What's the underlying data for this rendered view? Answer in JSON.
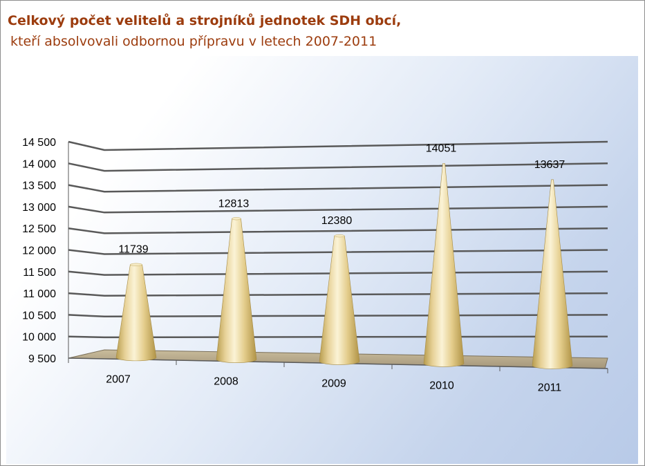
{
  "chart_data": {
    "type": "bar",
    "title": "Celkový počet velitelů a strojníků jednotek SDH obcí,",
    "subtitle": "kteří absolvovali odbornou přípravu v letech 2007-2011",
    "categories": [
      "2007",
      "2008",
      "2009",
      "2010",
      "2011"
    ],
    "values": [
      11739,
      12813,
      12380,
      14051,
      13637
    ],
    "data_labels": [
      "11739",
      "12813",
      "12380",
      "14051",
      "13637"
    ],
    "ylim": [
      9500,
      14500
    ],
    "yticks": [
      9500,
      10000,
      10500,
      11000,
      11500,
      12000,
      12500,
      13000,
      13500,
      14000,
      14500
    ],
    "ytick_labels": [
      "9 500",
      "10 000",
      "10 500",
      "11 000",
      "11 500",
      "12 000",
      "12 500",
      "13 000",
      "13 500",
      "14 000",
      "14 500"
    ],
    "grid": true,
    "legend": "none",
    "bar_shape": "cone",
    "colors": {
      "bar": "#e9d49a",
      "grid": "#595959",
      "title": "#9c3c0e",
      "floor": "#b7a98a"
    }
  }
}
